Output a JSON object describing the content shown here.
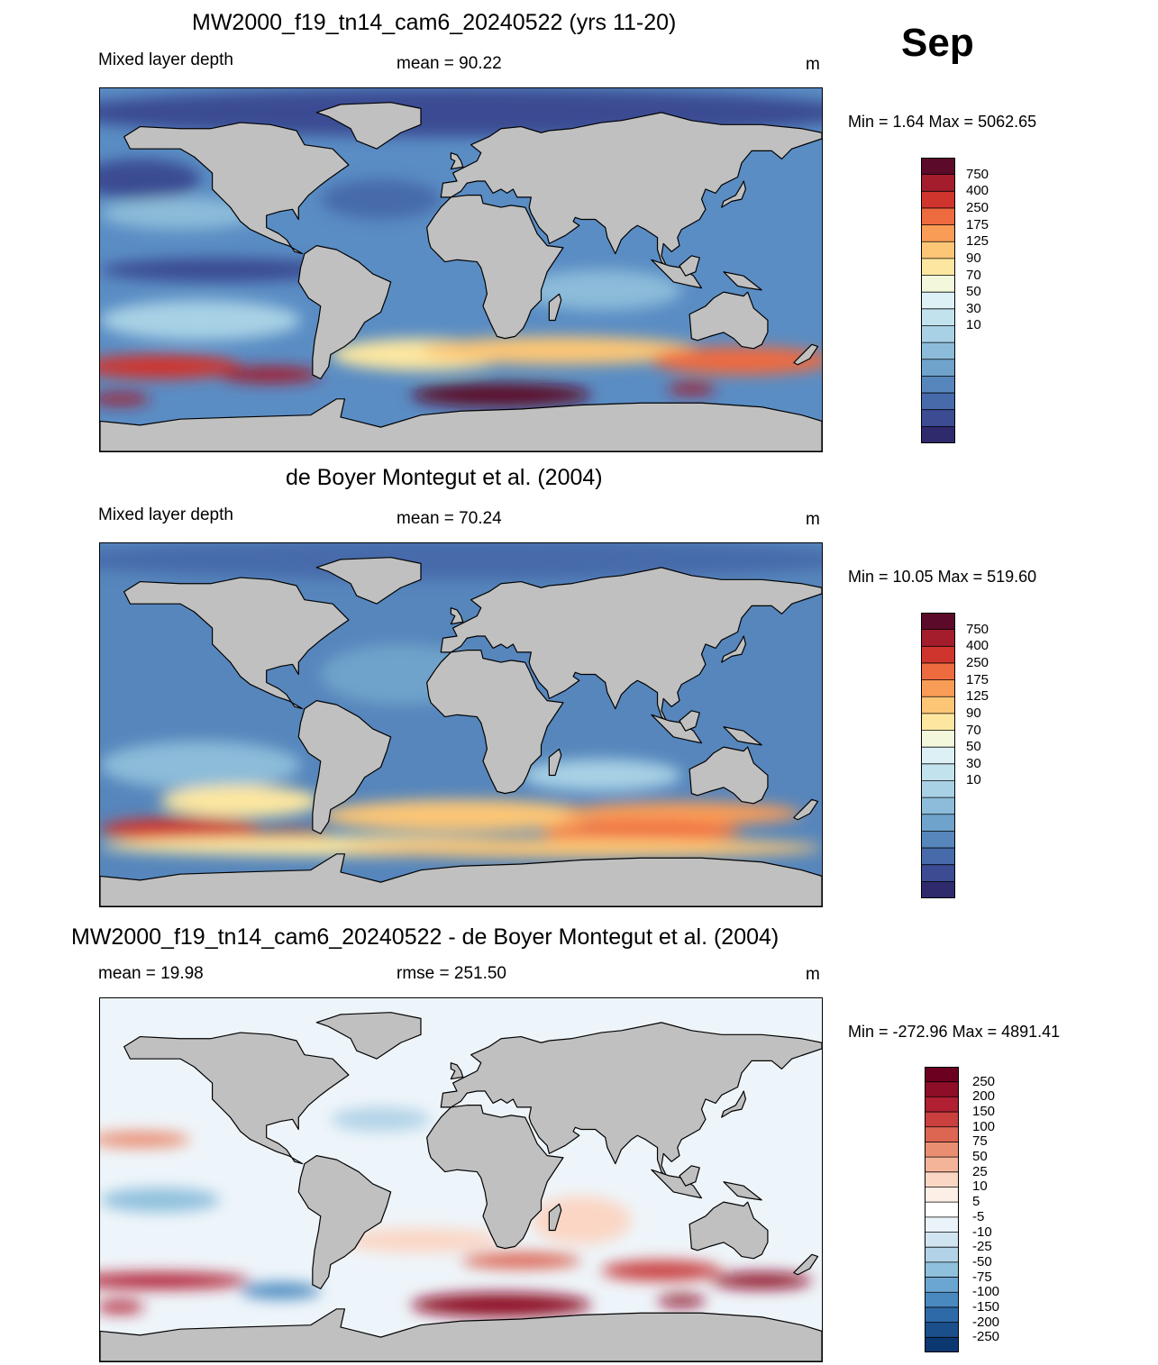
{
  "header": {
    "month": "Sep"
  },
  "panels": [
    {
      "title": "MW2000_f19_tn14_cam6_20240522 (yrs 11-20)",
      "left_label": "Mixed layer depth",
      "center_label": "mean =  90.22",
      "right_label": "m",
      "minmax": "Min =   1.64 Max = 5062.65"
    },
    {
      "title": "de Boyer Montegut et al. (2004)",
      "left_label": "Mixed layer depth",
      "center_label": "mean =  70.24",
      "right_label": "m",
      "minmax": "Min =  10.05 Max = 519.60"
    },
    {
      "title": "MW2000_f19_tn14_cam6_20240522 - de Boyer Montegut et al. (2004)",
      "left_label": "mean =  19.98",
      "center_label": "rmse = 251.50",
      "right_label": "m",
      "minmax": "Min = -272.96 Max = 4891.41"
    }
  ],
  "colorbars": {
    "mld_labels": [
      "750",
      "400",
      "250",
      "175",
      "125",
      "90",
      "70",
      "50",
      "30",
      "10"
    ],
    "mld_colors": [
      "#5c0a2a",
      "#a31d2d",
      "#d0352d",
      "#ee6a3f",
      "#f99c56",
      "#fcc676",
      "#fde7a0",
      "#f3f8dc",
      "#dcf0f6",
      "#c2e2ee",
      "#a8d1e5",
      "#8cbcd9",
      "#6fa3cb",
      "#5686bc",
      "#466aaa",
      "#3b4c93",
      "#2e2a6c"
    ],
    "diff_labels": [
      "250",
      "200",
      "150",
      "100",
      "75",
      "50",
      "25",
      "10",
      "5",
      "-5",
      "-10",
      "-25",
      "-50",
      "-75",
      "-100",
      "-150",
      "-200",
      "-250"
    ],
    "diff_colors": [
      "#6b0020",
      "#8e0d27",
      "#b01f32",
      "#c9403f",
      "#dc6652",
      "#ea8e72",
      "#f4b49a",
      "#fbd6c4",
      "#fdeee6",
      "#ffffff",
      "#eaf3f9",
      "#d1e5f0",
      "#b2d3e7",
      "#8fc0dc",
      "#6aa6cf",
      "#4a89c0",
      "#2f6aa8",
      "#1a4f8c",
      "#0c3872"
    ]
  },
  "chart_data": [
    {
      "type": "heatmap",
      "title": "MW2000_f19_tn14_cam6_20240522 (yrs 11-20)",
      "subtitle": "Mixed layer depth",
      "units": "m",
      "mean": 90.22,
      "min": 1.64,
      "max": 5062.65,
      "colorbar_levels": [
        10,
        30,
        50,
        70,
        90,
        125,
        175,
        250,
        400,
        750
      ]
    },
    {
      "type": "heatmap",
      "title": "de Boyer Montegut et al. (2004)",
      "subtitle": "Mixed layer depth",
      "units": "m",
      "mean": 70.24,
      "min": 10.05,
      "max": 519.6,
      "colorbar_levels": [
        10,
        30,
        50,
        70,
        90,
        125,
        175,
        250,
        400,
        750
      ]
    },
    {
      "type": "heatmap",
      "title": "MW2000_f19_tn14_cam6_20240522 - de Boyer Montegut et al. (2004)",
      "units": "m",
      "mean": 19.98,
      "rmse": 251.5,
      "min": -272.96,
      "max": 4891.41,
      "colorbar_levels": [
        -250,
        -200,
        -150,
        -100,
        -75,
        -50,
        -25,
        -10,
        -5,
        5,
        10,
        25,
        50,
        75,
        100,
        150,
        200,
        250
      ]
    }
  ]
}
